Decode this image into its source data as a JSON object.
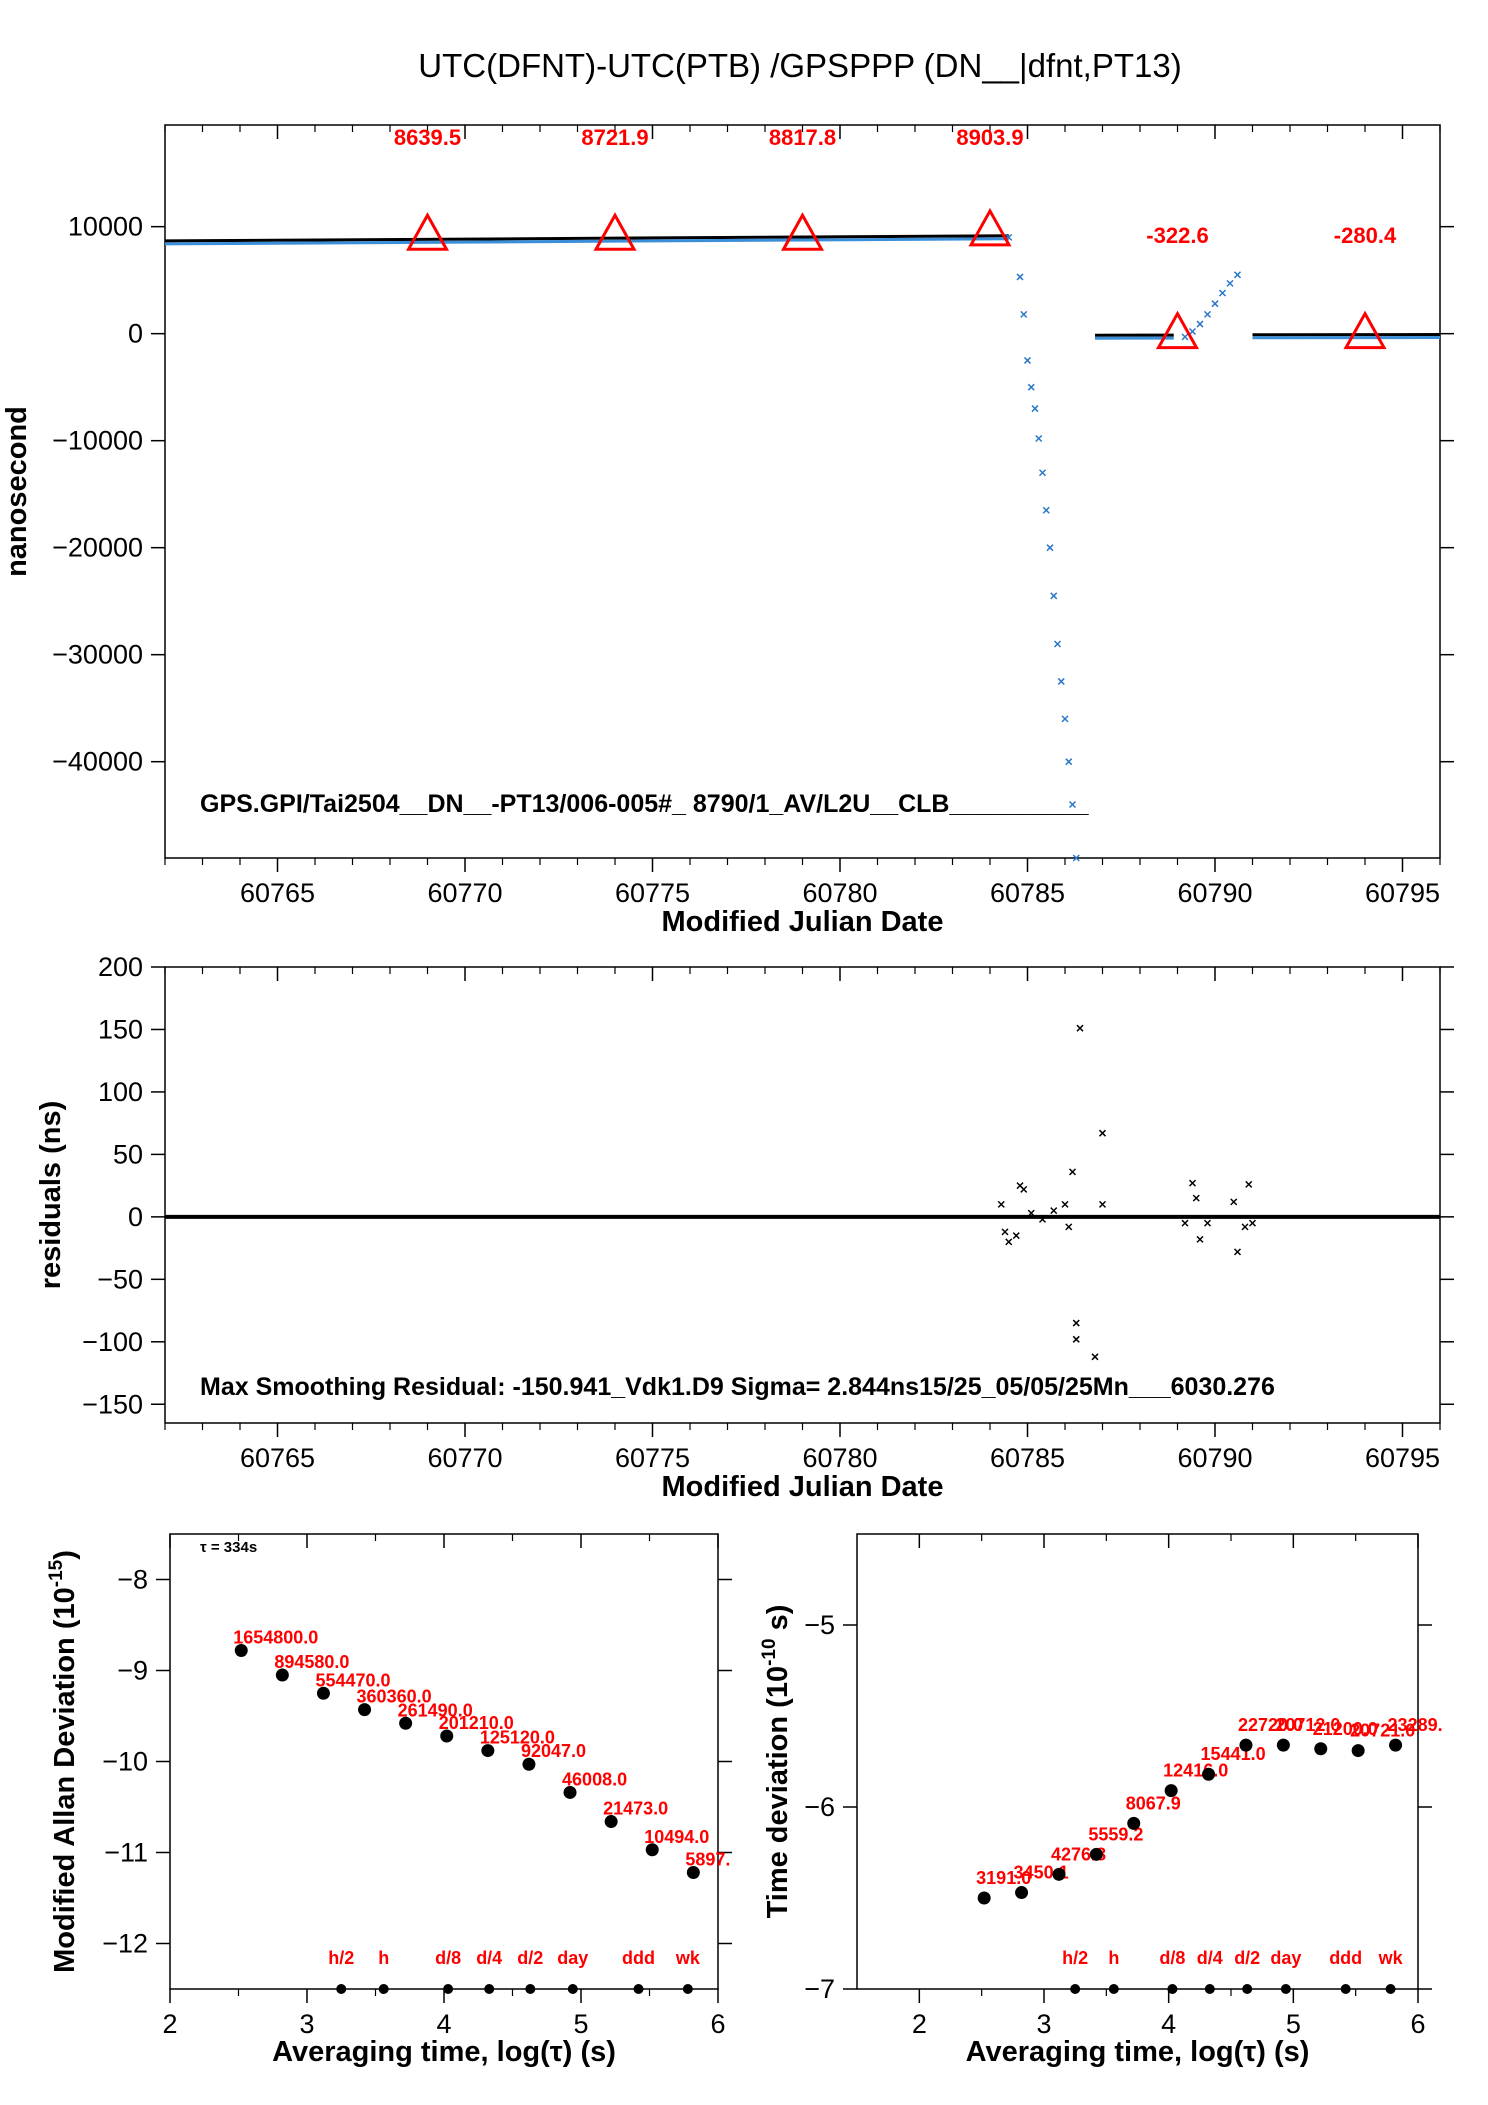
{
  "page_title": "UTC(DFNT)-UTC(PTB)  /GPSPPP  (DN__|dfnt,PT13)",
  "chart_data": [
    {
      "id": "phase",
      "type": "scatter",
      "xlabel": "Modified Julian Date",
      "ylabel": "nanosecond",
      "xlim": [
        60762,
        60796
      ],
      "ylim": [
        -49000,
        19500
      ],
      "xticks": [
        60765,
        60770,
        60775,
        60780,
        60785,
        60790,
        60795
      ],
      "yticks": [
        10000,
        0,
        -10000,
        -20000,
        -30000,
        -40000
      ],
      "ytick_labels": [
        "10000",
        "0",
        "−10000",
        "−20000",
        "−30000",
        "−40000"
      ],
      "note": "GPS.GPI/Tai2504__DN__-PT13/006-005#_  8790/1_AV/L2U__CLB__________",
      "segments": [
        {
          "x0": 60762.0,
          "y0": 8480,
          "x1": 60784.5,
          "y1": 8960
        },
        {
          "x0": 60786.8,
          "y0": -330,
          "x1": 60788.9,
          "y1": -320
        },
        {
          "x0": 60791.0,
          "y0": -290,
          "x1": 60796.0,
          "y1": -270
        }
      ],
      "scatter_points": [
        {
          "x": 60784.5,
          "y": 9000
        },
        {
          "x": 60784.8,
          "y": 5300
        },
        {
          "x": 60784.9,
          "y": 1800
        },
        {
          "x": 60785.0,
          "y": -2500
        },
        {
          "x": 60785.1,
          "y": -5000
        },
        {
          "x": 60785.2,
          "y": -7000
        },
        {
          "x": 60785.3,
          "y": -9800
        },
        {
          "x": 60785.4,
          "y": -13000
        },
        {
          "x": 60785.5,
          "y": -16500
        },
        {
          "x": 60785.6,
          "y": -20000
        },
        {
          "x": 60785.7,
          "y": -24500
        },
        {
          "x": 60785.8,
          "y": -29000
        },
        {
          "x": 60785.9,
          "y": -32500
        },
        {
          "x": 60786.0,
          "y": -36000
        },
        {
          "x": 60786.1,
          "y": -40000
        },
        {
          "x": 60786.2,
          "y": -44000
        },
        {
          "x": 60786.3,
          "y": -49000
        },
        {
          "x": 60789.2,
          "y": -300
        },
        {
          "x": 60789.4,
          "y": 200
        },
        {
          "x": 60789.6,
          "y": 900
        },
        {
          "x": 60789.8,
          "y": 1800
        },
        {
          "x": 60790.0,
          "y": 2800
        },
        {
          "x": 60790.2,
          "y": 3800
        },
        {
          "x": 60790.4,
          "y": 4700
        },
        {
          "x": 60790.6,
          "y": 5500
        }
      ],
      "markers": [
        {
          "x": 60769,
          "y": 9200,
          "label": "8639.5"
        },
        {
          "x": 60774,
          "y": 9200,
          "label": "8721.9"
        },
        {
          "x": 60779,
          "y": 9200,
          "label": "8817.8"
        },
        {
          "x": 60784,
          "y": 9600,
          "label": "8903.9"
        },
        {
          "x": 60789,
          "y": 0,
          "label": "-322.6"
        },
        {
          "x": 60794,
          "y": 0,
          "label": "-280.4"
        }
      ]
    },
    {
      "id": "residuals",
      "type": "scatter",
      "xlabel": "Modified Julian Date",
      "ylabel": "residuals (ns)",
      "xlim": [
        60762,
        60796
      ],
      "ylim": [
        -165,
        200
      ],
      "xticks": [
        60765,
        60770,
        60775,
        60780,
        60785,
        60790,
        60795
      ],
      "yticks": [
        200,
        150,
        100,
        50,
        0,
        -50,
        -100,
        -150
      ],
      "ytick_labels": [
        "200",
        "150",
        "100",
        "50",
        "0",
        "−50",
        "−100",
        "−150"
      ],
      "note": "Max Smoothing Residual: -150.941_Vdk1.D9  Sigma= 2.844ns15/25_05/05/25Mn___6030.276",
      "baseline": {
        "x0": 60762.0,
        "x1": 60796.0,
        "y": 0
      },
      "scatter_points": [
        {
          "x": 60784.3,
          "y": 10
        },
        {
          "x": 60784.4,
          "y": -12
        },
        {
          "x": 60784.5,
          "y": -20
        },
        {
          "x": 60784.7,
          "y": -15
        },
        {
          "x": 60784.8,
          "y": 25
        },
        {
          "x": 60784.9,
          "y": 22
        },
        {
          "x": 60785.1,
          "y": 3
        },
        {
          "x": 60785.4,
          "y": -2
        },
        {
          "x": 60785.7,
          "y": 5
        },
        {
          "x": 60786.0,
          "y": 10
        },
        {
          "x": 60786.1,
          "y": -8
        },
        {
          "x": 60786.2,
          "y": 36
        },
        {
          "x": 60786.3,
          "y": -85
        },
        {
          "x": 60786.3,
          "y": -98
        },
        {
          "x": 60786.4,
          "y": 151
        },
        {
          "x": 60786.8,
          "y": -112
        },
        {
          "x": 60787.0,
          "y": 67
        },
        {
          "x": 60787.0,
          "y": 10
        },
        {
          "x": 60789.2,
          "y": -5
        },
        {
          "x": 60789.4,
          "y": 27
        },
        {
          "x": 60789.5,
          "y": 15
        },
        {
          "x": 60789.6,
          "y": -18
        },
        {
          "x": 60789.8,
          "y": -5
        },
        {
          "x": 60790.5,
          "y": 12
        },
        {
          "x": 60790.6,
          "y": -28
        },
        {
          "x": 60790.8,
          "y": -8
        },
        {
          "x": 60790.9,
          "y": 26
        },
        {
          "x": 60791.0,
          "y": -5
        }
      ]
    },
    {
      "id": "mdev",
      "type": "scatter",
      "xlabel": "Averaging time, log(τ) (s)",
      "ylabel": "Modified Allan Deviation (10",
      "ylabel_sup": "-15",
      "ylabel_end": ")",
      "xlim": [
        2,
        6
      ],
      "ylim": [
        -12.5,
        -7.5
      ],
      "xticks": [
        2,
        3,
        4,
        5,
        6
      ],
      "yticks": [
        -8,
        -9,
        -10,
        -11,
        -12
      ],
      "ytick_labels": [
        "−8",
        "−9",
        "−10",
        "−11",
        "−12"
      ],
      "tau_note": "τ = 334s",
      "points": [
        {
          "x": 2.52,
          "y": -8.78,
          "label": "1654800.0"
        },
        {
          "x": 2.82,
          "y": -9.05,
          "label": "894580.0"
        },
        {
          "x": 3.12,
          "y": -9.25,
          "label": "554470.0"
        },
        {
          "x": 3.42,
          "y": -9.43,
          "label": "360360.0"
        },
        {
          "x": 3.72,
          "y": -9.58,
          "label": "261490.0"
        },
        {
          "x": 4.02,
          "y": -9.72,
          "label": "201210.0"
        },
        {
          "x": 4.32,
          "y": -9.88,
          "label": "125120.0"
        },
        {
          "x": 4.62,
          "y": -10.03,
          "label": "92047.0"
        },
        {
          "x": 4.92,
          "y": -10.34,
          "label": "46008.0"
        },
        {
          "x": 5.22,
          "y": -10.66,
          "label": "21473.0"
        },
        {
          "x": 5.52,
          "y": -10.97,
          "label": "10494.0"
        },
        {
          "x": 5.82,
          "y": -11.22,
          "label": "5897."
        }
      ],
      "time_markers": [
        {
          "x": 3.25,
          "label": "h/2"
        },
        {
          "x": 3.56,
          "label": "h"
        },
        {
          "x": 4.03,
          "label": "d/8"
        },
        {
          "x": 4.33,
          "label": "d/4"
        },
        {
          "x": 4.63,
          "label": "d/2"
        },
        {
          "x": 4.94,
          "label": "day"
        },
        {
          "x": 5.42,
          "label": "ddd"
        },
        {
          "x": 5.78,
          "label": "wk"
        }
      ]
    },
    {
      "id": "tdev",
      "type": "scatter",
      "xlabel": "Averaging time, log(τ) (s)",
      "ylabel": "Time deviation (10",
      "ylabel_sup": "-10",
      "ylabel_end": " s)",
      "xlim": [
        1.5,
        6
      ],
      "ylim": [
        -7,
        -4.5
      ],
      "xticks": [
        2,
        3,
        4,
        5,
        6
      ],
      "yticks": [
        -5,
        -6,
        -7
      ],
      "ytick_labels": [
        "−5",
        "−6",
        "−7"
      ],
      "points": [
        {
          "x": 2.52,
          "y": -6.5,
          "label": "3191.0"
        },
        {
          "x": 2.82,
          "y": -6.47,
          "label": "3450.1"
        },
        {
          "x": 3.12,
          "y": -6.37,
          "label": "4276.8"
        },
        {
          "x": 3.42,
          "y": -6.26,
          "label": "5559.2"
        },
        {
          "x": 3.72,
          "y": -6.09,
          "label": "8067.9"
        },
        {
          "x": 4.02,
          "y": -5.91,
          "label": "12416.0"
        },
        {
          "x": 4.32,
          "y": -5.82,
          "label": "15441.0"
        },
        {
          "x": 4.62,
          "y": -5.66,
          "label": "22720.0"
        },
        {
          "x": 4.92,
          "y": -5.66,
          "label": "20712.0"
        },
        {
          "x": 5.22,
          "y": -5.68,
          "label": "21200.0"
        },
        {
          "x": 5.52,
          "y": -5.69,
          "label": "20721.0"
        },
        {
          "x": 5.82,
          "y": -5.66,
          "label": "23289."
        }
      ],
      "time_markers": [
        {
          "x": 3.25,
          "label": "h/2"
        },
        {
          "x": 3.56,
          "label": "h"
        },
        {
          "x": 4.03,
          "label": "d/8"
        },
        {
          "x": 4.33,
          "label": "d/4"
        },
        {
          "x": 4.63,
          "label": "d/2"
        },
        {
          "x": 4.94,
          "label": "day"
        },
        {
          "x": 5.42,
          "label": "ddd"
        },
        {
          "x": 5.78,
          "label": "wk"
        }
      ]
    }
  ]
}
